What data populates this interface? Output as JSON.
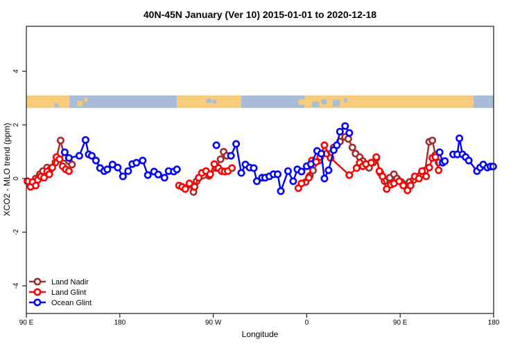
{
  "title": "40N-45N January (Ver 10)   2015-01-01 to 2020-12-18",
  "legend": {
    "entries": [
      {
        "label": "Land Nadir",
        "color": "#A52A2A"
      },
      {
        "label": "Land Glint",
        "color": "#FF0000"
      },
      {
        "label": "Ocean Glint",
        "color": "#0000FF"
      }
    ]
  },
  "chart_data": {
    "type": "line",
    "title": "40N-45N January (Ver 10)   2015-01-01 to 2020-12-18",
    "xlabel": "Longitude",
    "ylabel": "XCO2 - MLO trend (ppm)",
    "x_axis_note": "longitude axis runs 90E eastward through 180, 90W, 0, 90E to 180 (450 degrees total, stored as 90..540)",
    "x_domain": [
      90,
      540
    ],
    "ylim": [
      -5.0,
      5.7
    ],
    "grid": false,
    "yticks": [
      {
        "value": -4,
        "label": "-4"
      },
      {
        "value": -2,
        "label": "-2"
      },
      {
        "value": 0,
        "label": "0"
      },
      {
        "value": 2,
        "label": "2"
      },
      {
        "value": 4,
        "label": "4"
      }
    ],
    "xticks": [
      {
        "value": 90,
        "label": "90 E"
      },
      {
        "value": 180,
        "label": "180"
      },
      {
        "value": 270,
        "label": "90 W"
      },
      {
        "value": 360,
        "label": "0"
      },
      {
        "value": 450,
        "label": "90 E"
      },
      {
        "value": 540,
        "label": "180"
      }
    ],
    "map_strip": {
      "land_color": "#F8CC7A",
      "ocean_color": "#A9BDD8",
      "y_top_ppm": 3.1,
      "y_bottom_ppm": 2.63,
      "base": [
        {
          "from": 90,
          "to": 131.5,
          "type": "land"
        },
        {
          "from": 131.5,
          "to": 235,
          "type": "ocean"
        },
        {
          "from": 235,
          "to": 297,
          "type": "land"
        },
        {
          "from": 297,
          "to": 358,
          "type": "ocean"
        },
        {
          "from": 358,
          "to": 520.5,
          "type": "land"
        },
        {
          "from": 520.5,
          "to": 540,
          "type": "ocean"
        }
      ],
      "patches": [
        {
          "from": 117,
          "to": 121,
          "type": "ocean",
          "top": 0.6,
          "h": 0.35
        },
        {
          "from": 139,
          "to": 144,
          "type": "land",
          "top": 0.45,
          "h": 0.4
        },
        {
          "from": 146,
          "to": 149,
          "type": "land",
          "top": 0.2,
          "h": 0.3
        },
        {
          "from": 263,
          "to": 268,
          "type": "ocean",
          "top": 0.25,
          "h": 0.35
        },
        {
          "from": 269,
          "to": 273,
          "type": "ocean",
          "top": 0.35,
          "h": 0.3
        },
        {
          "from": 352,
          "to": 358,
          "type": "land",
          "top": 0.3,
          "h": 0.45
        },
        {
          "from": 365,
          "to": 372,
          "type": "ocean",
          "top": 0.5,
          "h": 0.45
        },
        {
          "from": 374,
          "to": 379,
          "type": "ocean",
          "top": 0.3,
          "h": 0.4
        },
        {
          "from": 385,
          "to": 392,
          "type": "ocean",
          "top": 0.35,
          "h": 0.55
        },
        {
          "from": 396,
          "to": 399,
          "type": "ocean",
          "top": 0.2,
          "h": 0.35
        },
        {
          "from": 500,
          "to": 505,
          "type": "land",
          "top": 0.3,
          "h": 0.4
        },
        {
          "from": 507,
          "to": 512,
          "type": "land",
          "top": 0.15,
          "h": 0.45
        }
      ]
    },
    "series": [
      {
        "name": "Land Nadir",
        "color": "#A52A2A",
        "clusters": [
          [
            [
              99,
              0.0
            ],
            [
              103,
              0.16
            ],
            [
              106,
              0.28
            ],
            [
              110,
              0.41
            ],
            [
              113,
              0.34
            ],
            [
              118,
              0.6
            ],
            [
              123,
              1.42
            ],
            [
              127,
              0.77
            ],
            [
              131,
              0.65
            ],
            [
              134,
              0.52
            ]
          ],
          [
            [
              247,
              -0.23
            ],
            [
              251,
              -0.5
            ],
            [
              254,
              -0.1
            ],
            [
              266,
              0.1
            ],
            [
              273,
              0.39
            ],
            [
              277,
              0.72
            ],
            [
              280,
              1.0
            ],
            [
              283,
              0.85
            ]
          ],
          [
            [
              359,
              -0.13
            ],
            [
              363,
              0.1
            ],
            [
              366,
              0.3
            ],
            [
              372,
              0.67
            ],
            [
              379,
              0.93
            ],
            [
              386,
              1.16
            ],
            [
              392,
              1.38
            ],
            [
              397,
              1.55
            ],
            [
              400,
              1.48
            ],
            [
              404,
              1.16
            ],
            [
              407,
              0.93
            ],
            [
              411,
              0.8
            ],
            [
              414,
              0.65
            ],
            [
              417,
              0.5
            ],
            [
              420,
              0.4
            ],
            [
              424,
              0.6
            ],
            [
              427,
              0.77
            ],
            [
              431,
              0.21
            ],
            [
              435,
              -0.1
            ],
            [
              440,
              0.03
            ],
            [
              444,
              0.16
            ],
            [
              447,
              0.0
            ],
            [
              451,
              -0.13
            ],
            [
              455,
              -0.23
            ],
            [
              459,
              -0.13
            ],
            [
              463,
              -0.05
            ],
            [
              467,
              0.03
            ],
            [
              470,
              0.15
            ],
            [
              474,
              0.3
            ],
            [
              478,
              1.37
            ],
            [
              481,
              1.42
            ],
            [
              484,
              0.88
            ],
            [
              487,
              0.6
            ]
          ]
        ]
      },
      {
        "name": "Land Glint",
        "color": "#FF0000",
        "clusters": [
          [
            [
              91,
              -0.1
            ],
            [
              94,
              -0.31
            ],
            [
              96,
              -0.13
            ],
            [
              99,
              -0.26
            ],
            [
              101,
              -0.05
            ],
            [
              104,
              0.08
            ],
            [
              107,
              0.03
            ],
            [
              110,
              0.26
            ],
            [
              112,
              0.16
            ],
            [
              115,
              0.41
            ],
            [
              119,
              0.8
            ],
            [
              122,
              0.72
            ],
            [
              125,
              0.46
            ],
            [
              128,
              0.34
            ],
            [
              131,
              0.28
            ]
          ],
          [
            [
              237,
              -0.26
            ],
            [
              240,
              -0.31
            ],
            [
              243,
              -0.39
            ],
            [
              247,
              -0.18
            ],
            [
              252,
              -0.31
            ],
            [
              256,
              0.03
            ],
            [
              259,
              0.21
            ],
            [
              263,
              0.28
            ],
            [
              267,
              0.16
            ],
            [
              271,
              0.54
            ],
            [
              275,
              0.39
            ],
            [
              278,
              0.28
            ],
            [
              281,
              0.26
            ],
            [
              284,
              0.28
            ],
            [
              288,
              0.39
            ]
          ],
          [
            [
              352,
              -0.36
            ],
            [
              355,
              -0.18
            ],
            [
              362,
              0.03
            ],
            [
              365,
              0.67
            ],
            [
              369,
              0.62
            ],
            [
              373,
              0.8
            ],
            [
              377,
              1.24
            ],
            [
              383,
              0.77
            ],
            [
              401,
              0.13
            ],
            [
              408,
              0.39
            ],
            [
              411,
              0.59
            ],
            [
              414,
              0.46
            ],
            [
              417,
              0.54
            ],
            [
              422,
              0.59
            ],
            [
              427,
              0.8
            ],
            [
              430,
              0.28
            ],
            [
              433,
              0.08
            ],
            [
              437,
              -0.39
            ],
            [
              441,
              -0.23
            ],
            [
              444,
              -0.18
            ],
            [
              449,
              -0.1
            ],
            [
              453,
              -0.26
            ],
            [
              457,
              -0.44
            ],
            [
              460,
              -0.26
            ],
            [
              464,
              0.08
            ],
            [
              468,
              0.0
            ],
            [
              471,
              0.28
            ],
            [
              475,
              0.08
            ],
            [
              478,
              0.41
            ],
            [
              481,
              0.77
            ],
            [
              484,
              0.8
            ],
            [
              487,
              0.31
            ]
          ]
        ]
      },
      {
        "name": "Ocean Glint",
        "color": "#0000FF",
        "clusters": [
          [
            [
              127,
              0.98
            ],
            [
              131,
              0.77
            ],
            [
              141,
              0.85
            ],
            [
              147,
              1.44
            ],
            [
              150,
              0.9
            ],
            [
              153,
              0.85
            ],
            [
              157,
              0.67
            ],
            [
              161,
              0.39
            ],
            [
              165,
              0.28
            ],
            [
              168,
              0.34
            ],
            [
              173,
              0.52
            ],
            [
              178,
              0.41
            ],
            [
              183,
              0.08
            ],
            [
              188,
              0.28
            ],
            [
              192,
              0.54
            ],
            [
              196,
              0.59
            ],
            [
              202,
              0.67
            ],
            [
              207,
              0.13
            ],
            [
              213,
              0.26
            ],
            [
              217,
              0.15
            ],
            [
              223,
              0.03
            ],
            [
              227,
              0.28
            ],
            [
              232,
              0.26
            ],
            [
              235,
              0.34
            ]
          ],
          [
            [
              273,
              1.24
            ]
          ],
          [
            [
              287,
              0.85
            ],
            [
              292,
              1.29
            ],
            [
              297,
              0.21
            ],
            [
              301,
              0.52
            ],
            [
              305,
              0.41
            ],
            [
              309,
              0.39
            ],
            [
              312,
              -0.1
            ],
            [
              317,
              0.03
            ],
            [
              320,
              0.03
            ],
            [
              324,
              0.08
            ],
            [
              328,
              0.16
            ],
            [
              332,
              0.16
            ],
            [
              335,
              -0.47
            ],
            [
              342,
              0.28
            ],
            [
              347,
              -0.1
            ],
            [
              351,
              0.34
            ],
            [
              355,
              0.26
            ],
            [
              360,
              0.46
            ],
            [
              364,
              0.54
            ],
            [
              370,
              1.03
            ],
            [
              374,
              0.93
            ],
            [
              377,
              0.0
            ],
            [
              381,
              0.31
            ],
            [
              386,
              1.06
            ],
            [
              389,
              1.24
            ],
            [
              392,
              1.75
            ],
            [
              397,
              1.96
            ],
            [
              401,
              1.7
            ]
          ],
          [
            [
              488,
              0.98
            ],
            [
              491,
              0.59
            ],
            [
              493,
              0.65
            ]
          ],
          [
            [
              501,
              0.9
            ],
            [
              505,
              0.9
            ],
            [
              507,
              1.5
            ],
            [
              510,
              0.9
            ],
            [
              513,
              0.8
            ],
            [
              516,
              0.67
            ],
            [
              524,
              0.28
            ],
            [
              527,
              0.41
            ],
            [
              530,
              0.52
            ],
            [
              534,
              0.41
            ],
            [
              537,
              0.45
            ],
            [
              539.5,
              0.45
            ]
          ]
        ]
      }
    ],
    "legend_position": "bottom-left-inside"
  }
}
